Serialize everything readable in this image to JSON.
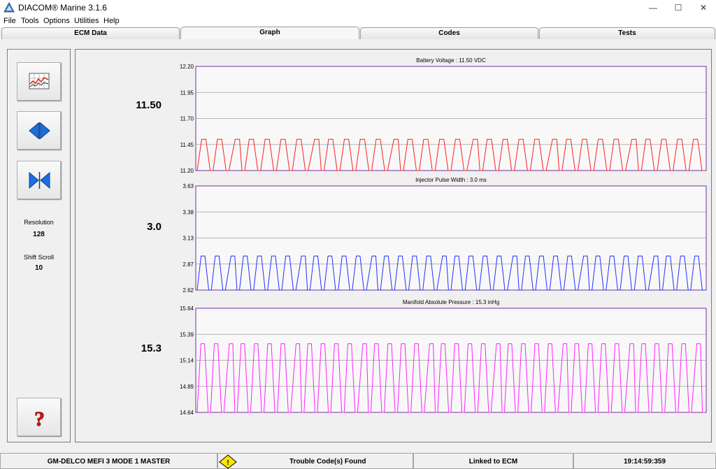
{
  "window": {
    "title": "DIACOM® Marine 3.1.6",
    "minimize": "—",
    "maximize": "☐",
    "close": "✕"
  },
  "menu": [
    "File",
    "Tools",
    "Options",
    "Utilities",
    "Help"
  ],
  "tabs": [
    {
      "label": "ECM Data",
      "active": false
    },
    {
      "label": "Graph",
      "active": true
    },
    {
      "label": "Codes",
      "active": false
    },
    {
      "label": "Tests",
      "active": false
    }
  ],
  "sidebar": {
    "buttons": [
      {
        "icon": "graph-chart-icon"
      },
      {
        "icon": "expand-arrows-icon"
      },
      {
        "icon": "compress-arrows-icon"
      }
    ],
    "resolution_label": "Resolution",
    "resolution_value": "128",
    "shift_scroll_label": "Shift Scroll",
    "shift_scroll_value": "10",
    "help_icon": "question-mark-icon"
  },
  "graphs": {
    "battery": {
      "current": "11.50"
    },
    "injector": {
      "current": "3.0"
    },
    "map": {
      "current": "15.3"
    }
  },
  "chart_data": [
    {
      "type": "line",
      "title": "Battery Voltage :  11.50 VDC",
      "yticks": [
        "12.20",
        "11.95",
        "11.70",
        "11.45",
        "11.20"
      ],
      "ylim": [
        11.2,
        12.2
      ],
      "color": "#ff2020",
      "low": 11.2,
      "high": 11.5,
      "cycles": 32,
      "grid": true
    },
    {
      "type": "line",
      "title": "Injector Pulse Width :  3.0 ms",
      "yticks": [
        "3.63",
        "3.38",
        "3.13",
        "2.87",
        "2.62"
      ],
      "ylim": [
        2.62,
        3.63
      ],
      "color": "#2030ff",
      "low": 2.62,
      "high": 2.95,
      "cycles": 36,
      "grid": true
    },
    {
      "type": "line",
      "title": "Manifold Absolute Pressure :  15.3 inHg",
      "yticks": [
        "15.64",
        "15.39",
        "15.14",
        "14.89",
        "14.64"
      ],
      "ylim": [
        14.64,
        15.64
      ],
      "color": "#ff20ff",
      "low": 14.64,
      "high": 15.3,
      "cycles": 38,
      "grid": true
    }
  ],
  "status": {
    "ecm": "GM-DELCO MEFI 3 MODE 1 MASTER",
    "warning_icon": "warning-triangle-icon",
    "codes": "Trouble Code(s) Found",
    "link": "Linked to ECM",
    "time": "19:14:59:359"
  }
}
